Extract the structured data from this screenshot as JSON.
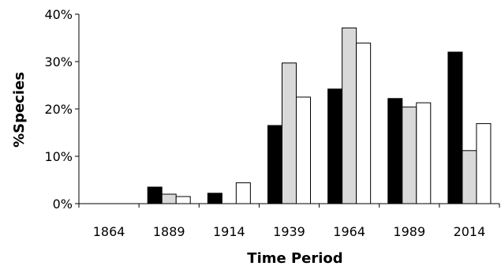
{
  "chart_data": {
    "type": "bar",
    "categories": [
      "1864",
      "1889",
      "1914",
      "1939",
      "1964",
      "1989",
      "2014"
    ],
    "series": [
      {
        "color": "#000000",
        "values": [
          0,
          3.5,
          2.2,
          16.5,
          24.2,
          22.2,
          32.0
        ]
      },
      {
        "color": "#d9d9d9",
        "values": [
          0,
          2.0,
          0,
          29.7,
          37.1,
          20.4,
          11.2
        ]
      },
      {
        "color": "#ffffff",
        "values": [
          0,
          1.5,
          4.4,
          22.5,
          33.9,
          21.3,
          16.9
        ]
      }
    ],
    "xlabel": "Time Period",
    "ylabel": "%Species",
    "ylim": [
      0,
      40
    ],
    "yticks": [
      "0%",
      "10%",
      "20%",
      "30%",
      "40%"
    ],
    "grid": false,
    "legend": "none"
  }
}
